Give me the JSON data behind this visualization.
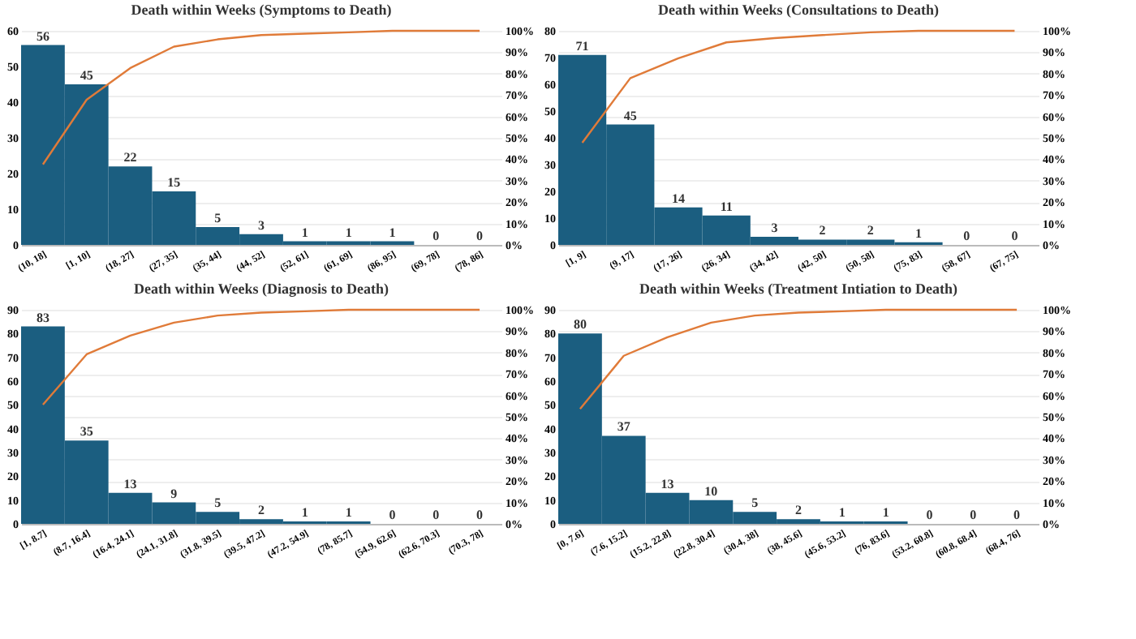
{
  "chart_data": [
    {
      "type": "bar",
      "title": "Death within Weeks (Symptoms to Death)",
      "categories": [
        "(10, 18]",
        "[1, 10]",
        "(18, 27]",
        "(27, 35]",
        "(35, 44]",
        "(44, 52]",
        "(52, 61]",
        "(61, 69]",
        "(86, 95]",
        "(69, 78]",
        "(78, 86]"
      ],
      "series": [
        {
          "color": "#1b5e80",
          "values": [
            56,
            45,
            22,
            15,
            5,
            3,
            1,
            1,
            1,
            0,
            0
          ],
          "value_labels": [
            "56",
            "45",
            "22",
            "15",
            "5",
            "3",
            "1",
            "1",
            "1",
            "0",
            "0"
          ]
        },
        {
          "type": "line",
          "axis": "y2",
          "color": "#e07b39",
          "values": [
            37.6,
            67.8,
            82.6,
            92.6,
            96.0,
            98.0,
            98.7,
            99.3,
            100,
            100,
            100
          ]
        }
      ],
      "ylim": [
        0,
        60
      ],
      "yticks": [
        0,
        10,
        20,
        30,
        40,
        50,
        60
      ],
      "y2lim": [
        0,
        100
      ],
      "y2ticks": [
        {
          "value": 0,
          "label": "0%"
        },
        {
          "value": 10,
          "label": "10%"
        },
        {
          "value": 20,
          "label": "20%"
        },
        {
          "value": 30,
          "label": "30%"
        },
        {
          "value": 40,
          "label": "40%"
        },
        {
          "value": 50,
          "label": "50%"
        },
        {
          "value": 60,
          "label": "60%"
        },
        {
          "value": 70,
          "label": "70%"
        },
        {
          "value": 80,
          "label": "80%"
        },
        {
          "value": 90,
          "label": "90%"
        },
        {
          "value": 100,
          "label": "100%"
        }
      ],
      "grid": "y2",
      "marker": "none",
      "line_style": "solid"
    },
    {
      "type": "bar",
      "title": "Death within Weeks (Consultations to Death)",
      "categories": [
        "[1, 9]",
        "(9, 17]",
        "(17, 26]",
        "(26, 34]",
        "(34, 42]",
        "(42, 50]",
        "(50, 58]",
        "(75, 83]",
        "(58, 67]",
        "(67, 75]"
      ],
      "series": [
        {
          "color": "#1b5e80",
          "values": [
            71,
            45,
            14,
            11,
            3,
            2,
            2,
            1,
            0,
            0
          ],
          "value_labels": [
            "71",
            "45",
            "14",
            "11",
            "3",
            "2",
            "2",
            "1",
            "0",
            "0"
          ]
        },
        {
          "type": "line",
          "axis": "y2",
          "color": "#e07b39",
          "values": [
            47.7,
            77.9,
            87.2,
            94.6,
            96.6,
            98.0,
            99.3,
            100,
            100,
            100
          ]
        }
      ],
      "ylim": [
        0,
        80
      ],
      "yticks": [
        0,
        10,
        20,
        30,
        40,
        50,
        60,
        70,
        80
      ],
      "y2lim": [
        0,
        100
      ],
      "y2ticks": [
        {
          "value": 0,
          "label": "0%"
        },
        {
          "value": 10,
          "label": "10%"
        },
        {
          "value": 20,
          "label": "20%"
        },
        {
          "value": 30,
          "label": "30%"
        },
        {
          "value": 40,
          "label": "40%"
        },
        {
          "value": 50,
          "label": "50%"
        },
        {
          "value": 60,
          "label": "60%"
        },
        {
          "value": 70,
          "label": "70%"
        },
        {
          "value": 80,
          "label": "80%"
        },
        {
          "value": 90,
          "label": "90%"
        },
        {
          "value": 100,
          "label": "100%"
        }
      ],
      "grid": "y2",
      "marker": "none",
      "line_style": "solid"
    },
    {
      "type": "bar",
      "title": "Death within Weeks (Diagnosis to Death)",
      "categories": [
        "[1, 8.7]",
        "(8.7, 16.4]",
        "(16.4, 24.1]",
        "(24.1, 31.8]",
        "(31.8, 39.5]",
        "(39.5, 47.2]",
        "(47.2, 54.9]",
        "(78, 85.7]",
        "(54.9, 62.6]",
        "(62.6, 70.3]",
        "(70.3, 78]"
      ],
      "series": [
        {
          "color": "#1b5e80",
          "values": [
            83,
            35,
            13,
            9,
            5,
            2,
            1,
            1,
            0,
            0,
            0
          ],
          "value_labels": [
            "83",
            "35",
            "13",
            "9",
            "5",
            "2",
            "1",
            "1",
            "0",
            "0",
            "0"
          ]
        },
        {
          "type": "line",
          "axis": "y2",
          "color": "#e07b39",
          "values": [
            55.7,
            79.2,
            87.9,
            94.0,
            97.3,
            98.7,
            99.3,
            100,
            100,
            100,
            100
          ]
        }
      ],
      "ylim": [
        0,
        90
      ],
      "yticks": [
        0,
        10,
        20,
        30,
        40,
        50,
        60,
        70,
        80,
        90
      ],
      "y2lim": [
        0,
        100
      ],
      "y2ticks": [
        {
          "value": 0,
          "label": "0%"
        },
        {
          "value": 10,
          "label": "10%"
        },
        {
          "value": 20,
          "label": "20%"
        },
        {
          "value": 30,
          "label": "30%"
        },
        {
          "value": 40,
          "label": "40%"
        },
        {
          "value": 50,
          "label": "50%"
        },
        {
          "value": 60,
          "label": "60%"
        },
        {
          "value": 70,
          "label": "70%"
        },
        {
          "value": 80,
          "label": "80%"
        },
        {
          "value": 90,
          "label": "90%"
        },
        {
          "value": 100,
          "label": "100%"
        }
      ],
      "grid": "y2",
      "marker": "none",
      "line_style": "solid"
    },
    {
      "type": "bar",
      "title": "Death within Weeks (Treatment Intiation to Death)",
      "categories": [
        "[0, 7.6]",
        "(7.6, 15.2]",
        "(15.2, 22.8]",
        "(22.8, 30.4]",
        "(30.4, 38]",
        "(38, 45.6]",
        "(45.6, 53.2]",
        "(76, 83.6]",
        "(53.2, 60.8]",
        "(60.8, 68.4]",
        "(68.4, 76]"
      ],
      "series": [
        {
          "color": "#1b5e80",
          "values": [
            80,
            37,
            13,
            10,
            5,
            2,
            1,
            1,
            0,
            0,
            0
          ],
          "value_labels": [
            "80",
            "37",
            "13",
            "10",
            "5",
            "2",
            "1",
            "1",
            "0",
            "0",
            "0"
          ]
        },
        {
          "type": "line",
          "axis": "y2",
          "color": "#e07b39",
          "values": [
            53.7,
            78.5,
            87.2,
            94.0,
            97.3,
            98.7,
            99.3,
            100,
            100,
            100,
            100
          ]
        }
      ],
      "ylim": [
        0,
        90
      ],
      "yticks": [
        0,
        10,
        20,
        30,
        40,
        50,
        60,
        70,
        80,
        90
      ],
      "y2lim": [
        0,
        100
      ],
      "y2ticks": [
        {
          "value": 0,
          "label": "0%"
        },
        {
          "value": 10,
          "label": "10%"
        },
        {
          "value": 20,
          "label": "20%"
        },
        {
          "value": 30,
          "label": "30%"
        },
        {
          "value": 40,
          "label": "40%"
        },
        {
          "value": 50,
          "label": "50%"
        },
        {
          "value": 60,
          "label": "60%"
        },
        {
          "value": 70,
          "label": "70%"
        },
        {
          "value": 80,
          "label": "80%"
        },
        {
          "value": 90,
          "label": "90%"
        },
        {
          "value": 100,
          "label": "100%"
        }
      ],
      "grid": "y2",
      "marker": "none",
      "line_style": "solid"
    }
  ]
}
